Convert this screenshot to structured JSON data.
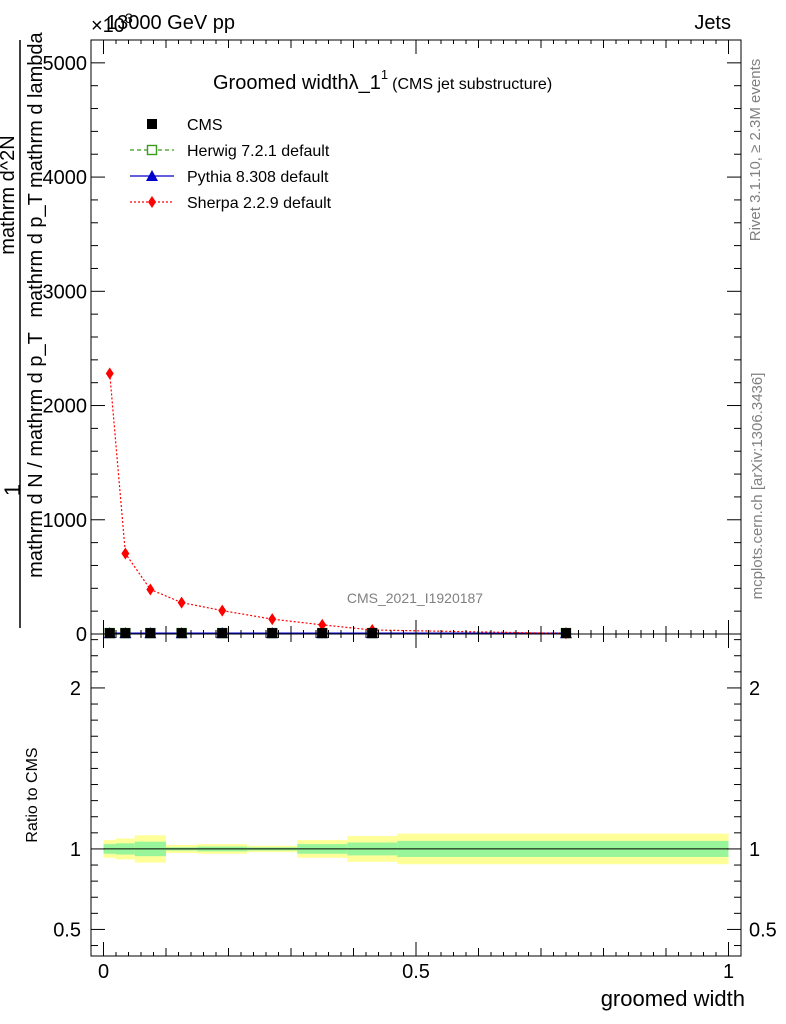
{
  "header": {
    "energy": "13000 GeV pp",
    "category": "Jets",
    "exponent_label": "×10",
    "exponent_power": "3"
  },
  "side_text": {
    "rivet": "Rivet 3.1.10, ≥ 2.3M events",
    "mcplots": "mcplots.cern.ch [arXiv:1306.3436]"
  },
  "watermark": "CMS_2021_I1920187",
  "chart_data": [
    {
      "type": "line",
      "title": "Groomed width",
      "title_symbol": "λ_1",
      "title_sup": "1",
      "subtitle": "(CMS jet substructure)",
      "ylabel_num": "1",
      "ylabel_den_num": "mathrm d^2N",
      "ylabel_den_den": "mathrm d p_T mathrm d lambda",
      "ylabel_top": "mathrm d^2N",
      "ylabel_bottom": "mathrm d p_T mathrm d lambda",
      "ylabel_frac_top": "1",
      "ylabel_frac_bottom": "mathrm d N / mathrm d p_T",
      "xlabel": "groomed width",
      "xlim": [
        -0.02,
        1.02
      ],
      "ylim": [
        0,
        5200
      ],
      "y_ticks": [
        0,
        1000,
        2000,
        3000,
        4000,
        5000
      ],
      "y_tick_labels": [
        "0",
        "1000",
        "2000",
        "3000",
        "4000",
        "5000"
      ],
      "legend_position": "top-left",
      "series": [
        {
          "name": "CMS",
          "color": "#000000",
          "marker": "square",
          "x": [
            0.01,
            0.035,
            0.075,
            0.125,
            0.19,
            0.27,
            0.35,
            0.43,
            0.74
          ],
          "y": [
            8,
            8,
            8,
            8,
            8,
            8,
            8,
            8,
            8
          ]
        },
        {
          "name": "Herwig 7.2.1 default",
          "color": "#3a9a1a",
          "marker": "open-square",
          "line": "dashed",
          "x": [
            0.01,
            0.035,
            0.075,
            0.125,
            0.19,
            0.27,
            0.35,
            0.43,
            0.74
          ],
          "y": [
            8,
            8,
            8,
            8,
            8,
            8,
            8,
            8,
            8
          ]
        },
        {
          "name": "Pythia 8.308 default",
          "color": "#0000cc",
          "marker": "triangle",
          "line": "solid",
          "x": [
            0.01,
            0.035,
            0.075,
            0.125,
            0.19,
            0.27,
            0.35,
            0.43,
            0.74
          ],
          "y": [
            8,
            8,
            8,
            8,
            8,
            8,
            8,
            8,
            8
          ]
        },
        {
          "name": "Sherpa 2.2.9 default",
          "color": "#ff0000",
          "marker": "diamond",
          "line": "dotted",
          "x": [
            0.01,
            0.035,
            0.075,
            0.125,
            0.19,
            0.27,
            0.35,
            0.43,
            0.74
          ],
          "y": [
            2280,
            705,
            390,
            275,
            205,
            130,
            80,
            35,
            5
          ]
        }
      ]
    },
    {
      "type": "area",
      "ylabel": "Ratio to CMS",
      "xlabel": "groomed width",
      "xlim": [
        -0.02,
        1.02
      ],
      "ylim": [
        0.335,
        2.335
      ],
      "y_ticks": [
        0.5,
        1,
        2
      ],
      "y_tick_labels": [
        "0.5",
        "1",
        "2"
      ],
      "x_ticks": [
        0,
        0.5,
        1
      ],
      "x_tick_labels": [
        "0",
        "0.5",
        "1"
      ],
      "bins": [
        {
          "lo": 0.0,
          "hi": 0.02,
          "stat": 0.03,
          "tot": 0.055
        },
        {
          "lo": 0.02,
          "hi": 0.05,
          "stat": 0.035,
          "tot": 0.065
        },
        {
          "lo": 0.05,
          "hi": 0.1,
          "stat": 0.045,
          "tot": 0.085
        },
        {
          "lo": 0.1,
          "hi": 0.15,
          "stat": 0.01,
          "tot": 0.025
        },
        {
          "lo": 0.15,
          "hi": 0.23,
          "stat": 0.015,
          "tot": 0.03
        },
        {
          "lo": 0.23,
          "hi": 0.31,
          "stat": 0.01,
          "tot": 0.02
        },
        {
          "lo": 0.31,
          "hi": 0.39,
          "stat": 0.03,
          "tot": 0.055
        },
        {
          "lo": 0.39,
          "hi": 0.47,
          "stat": 0.04,
          "tot": 0.08
        },
        {
          "lo": 0.47,
          "hi": 1.0,
          "stat": 0.05,
          "tot": 0.095
        }
      ],
      "stat_color": "#99f599",
      "tot_color": "#ffff99",
      "reference_line": 1
    }
  ]
}
